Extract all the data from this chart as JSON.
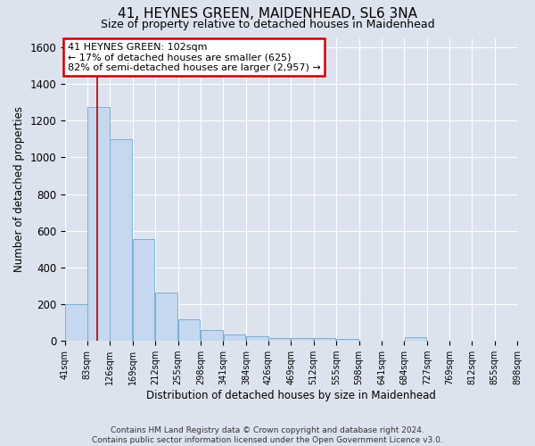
{
  "title": "41, HEYNES GREEN, MAIDENHEAD, SL6 3NA",
  "subtitle": "Size of property relative to detached houses in Maidenhead",
  "xlabel": "Distribution of detached houses by size in Maidenhead",
  "ylabel": "Number of detached properties",
  "footer_line1": "Contains HM Land Registry data © Crown copyright and database right 2024.",
  "footer_line2": "Contains public sector information licensed under the Open Government Licence v3.0.",
  "annotation_line1": "41 HEYNES GREEN: 102sqm",
  "annotation_line2": "← 17% of detached houses are smaller (625)",
  "annotation_line3": "82% of semi-detached houses are larger (2,957) →",
  "property_sqm": 102,
  "bin_edges": [
    41,
    83,
    126,
    169,
    212,
    255,
    298,
    341,
    384,
    426,
    469,
    512,
    555,
    598,
    641,
    684,
    727,
    769,
    812,
    855,
    898
  ],
  "bar_heights": [
    200,
    1275,
    1100,
    555,
    265,
    120,
    58,
    35,
    25,
    18,
    15,
    15,
    12,
    0,
    0,
    20,
    0,
    0,
    0,
    0
  ],
  "bar_color": "#c5d8ef",
  "bar_edgecolor": "#7ab0d4",
  "vline_color": "#aa0000",
  "annotation_box_edgecolor": "#cc0000",
  "annotation_box_facecolor": "#ffffff",
  "bg_color": "#dde3ee",
  "plot_bg_color": "#dde3ee",
  "grid_color": "#ffffff",
  "ylim": [
    0,
    1650
  ],
  "yticks": [
    0,
    200,
    400,
    600,
    800,
    1000,
    1200,
    1400,
    1600
  ]
}
